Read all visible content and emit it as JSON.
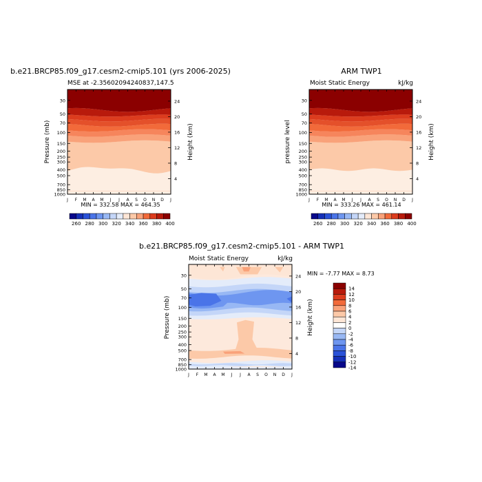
{
  "chart_data": [
    {
      "type": "heatmap",
      "title": "b.e21.BRCP85.f09_g17.cesm2-cmip5.101 (yrs 2006-2025)",
      "subtitle_left": "MSE at -2.35602094240837,147.5",
      "subtitle_right": "",
      "ylabel_left": "Pressure (mb)",
      "ylabel_right": "Height (km)",
      "x_ticks": [
        "J",
        "F",
        "M",
        "A",
        "M",
        "J",
        "J",
        "A",
        "S",
        "O",
        "N",
        "D",
        "J"
      ],
      "pressure_ticks": [
        "30",
        "50",
        "70",
        "100",
        "150",
        "200",
        "250",
        "300",
        "400",
        "500",
        "700",
        "850",
        "1000"
      ],
      "height_ticks": [
        "24",
        "20",
        "16",
        "12",
        "8",
        "4"
      ],
      "minmax": "MIN = 332.58  MAX = 464.35",
      "levels": [
        260,
        270,
        280,
        290,
        300,
        310,
        320,
        330,
        340,
        350,
        360,
        370,
        380,
        390,
        400
      ],
      "colorbar_labels": [
        "260",
        "280",
        "300",
        "320",
        "340",
        "360",
        "380",
        "400"
      ],
      "colors": [
        "#08088a",
        "#1530b8",
        "#2a52d8",
        "#4a74e8",
        "#6e96f0",
        "#98b8f4",
        "#c4d6f8",
        "#e4ecfa",
        "#fde6d6",
        "#fcc9a8",
        "#f9a27a",
        "#f26a3a",
        "#dc3c1e",
        "#b81a0c",
        "#8b0000"
      ],
      "bands_pressure": [
        {
          "bottom": 1000,
          "top": 880,
          "color": "#fde6d6"
        },
        {
          "bottom": 880,
          "top": 420,
          "color": "#fdeee2"
        },
        {
          "bottom": 420,
          "top": 140,
          "color": "#fcc9a8"
        },
        {
          "bottom": 140,
          "top": 112,
          "color": "#f9a27a"
        },
        {
          "bottom": 112,
          "top": 92,
          "color": "#f6855c"
        },
        {
          "bottom": 92,
          "top": 76,
          "color": "#f26a3a"
        },
        {
          "bottom": 76,
          "top": 64,
          "color": "#e4502a"
        },
        {
          "bottom": 64,
          "top": 54,
          "color": "#dc3c1e"
        },
        {
          "bottom": 54,
          "top": 44,
          "color": "#b81a0c"
        },
        {
          "bottom": 44,
          "top": 20,
          "color": "#8b0000"
        }
      ]
    },
    {
      "type": "heatmap",
      "title": "ARM TWP1",
      "subtitle_left": "Moist Static Energy",
      "subtitle_right": "kJ/kg",
      "ylabel_left": "pressure level",
      "ylabel_right": "Height (km)",
      "x_ticks": [
        "J",
        "F",
        "M",
        "A",
        "M",
        "J",
        "J",
        "A",
        "S",
        "O",
        "N",
        "D",
        "J"
      ],
      "pressure_ticks": [
        "30",
        "50",
        "70",
        "100",
        "150",
        "200",
        "250",
        "300",
        "400",
        "500",
        "700",
        "850",
        "1000"
      ],
      "height_ticks": [
        "24",
        "20",
        "16",
        "12",
        "8",
        "4"
      ],
      "minmax": "MIN = 333.26  MAX = 461.14",
      "levels": [
        260,
        270,
        280,
        290,
        300,
        310,
        320,
        330,
        340,
        350,
        360,
        370,
        380,
        390,
        400
      ],
      "colorbar_labels": [
        "260",
        "280",
        "300",
        "320",
        "340",
        "360",
        "380",
        "400"
      ],
      "colors": [
        "#08088a",
        "#1530b8",
        "#2a52d8",
        "#4a74e8",
        "#6e96f0",
        "#98b8f4",
        "#c4d6f8",
        "#e4ecfa",
        "#fde6d6",
        "#fcc9a8",
        "#f9a27a",
        "#f26a3a",
        "#dc3c1e",
        "#b81a0c",
        "#8b0000"
      ]
    },
    {
      "type": "heatmap",
      "title": "b.e21.BRCP85.f09_g17.cesm2-cmip5.101 - ARM TWP1",
      "subtitle_left": "Moist Static Energy",
      "subtitle_right": "kJ/kg",
      "ylabel_left": "Pressure (mb)",
      "ylabel_right": "Height (km)",
      "x_ticks": [
        "J",
        "F",
        "M",
        "A",
        "M",
        "J",
        "J",
        "A",
        "S",
        "O",
        "N",
        "D",
        "J"
      ],
      "pressure_ticks": [
        "30",
        "50",
        "70",
        "100",
        "150",
        "200",
        "250",
        "300",
        "400",
        "500",
        "700",
        "850",
        "1000"
      ],
      "height_ticks": [
        "24",
        "20",
        "16",
        "12",
        "8",
        "4"
      ],
      "minmax": "MIN =   -7.77  MAX =    8.73",
      "levels": [
        -14,
        -12,
        -10,
        -8,
        -6,
        -4,
        -2,
        0,
        2,
        4,
        6,
        8,
        10,
        12,
        14
      ],
      "colorbar_labels": [
        "14",
        "12",
        "10",
        "8",
        "6",
        "4",
        "2",
        "0",
        "-2",
        "-4",
        "-6",
        "-8",
        "-10",
        "-12",
        "-14"
      ],
      "colors": [
        "#08088a",
        "#1530b8",
        "#2a52d8",
        "#4a74e8",
        "#6e96f0",
        "#98b8f4",
        "#c4d6f8",
        "#ffffff",
        "#fde6d6",
        "#fcc9a8",
        "#f9a27a",
        "#f26a3a",
        "#dc3c1e",
        "#b81a0c",
        "#8b0000"
      ]
    }
  ]
}
